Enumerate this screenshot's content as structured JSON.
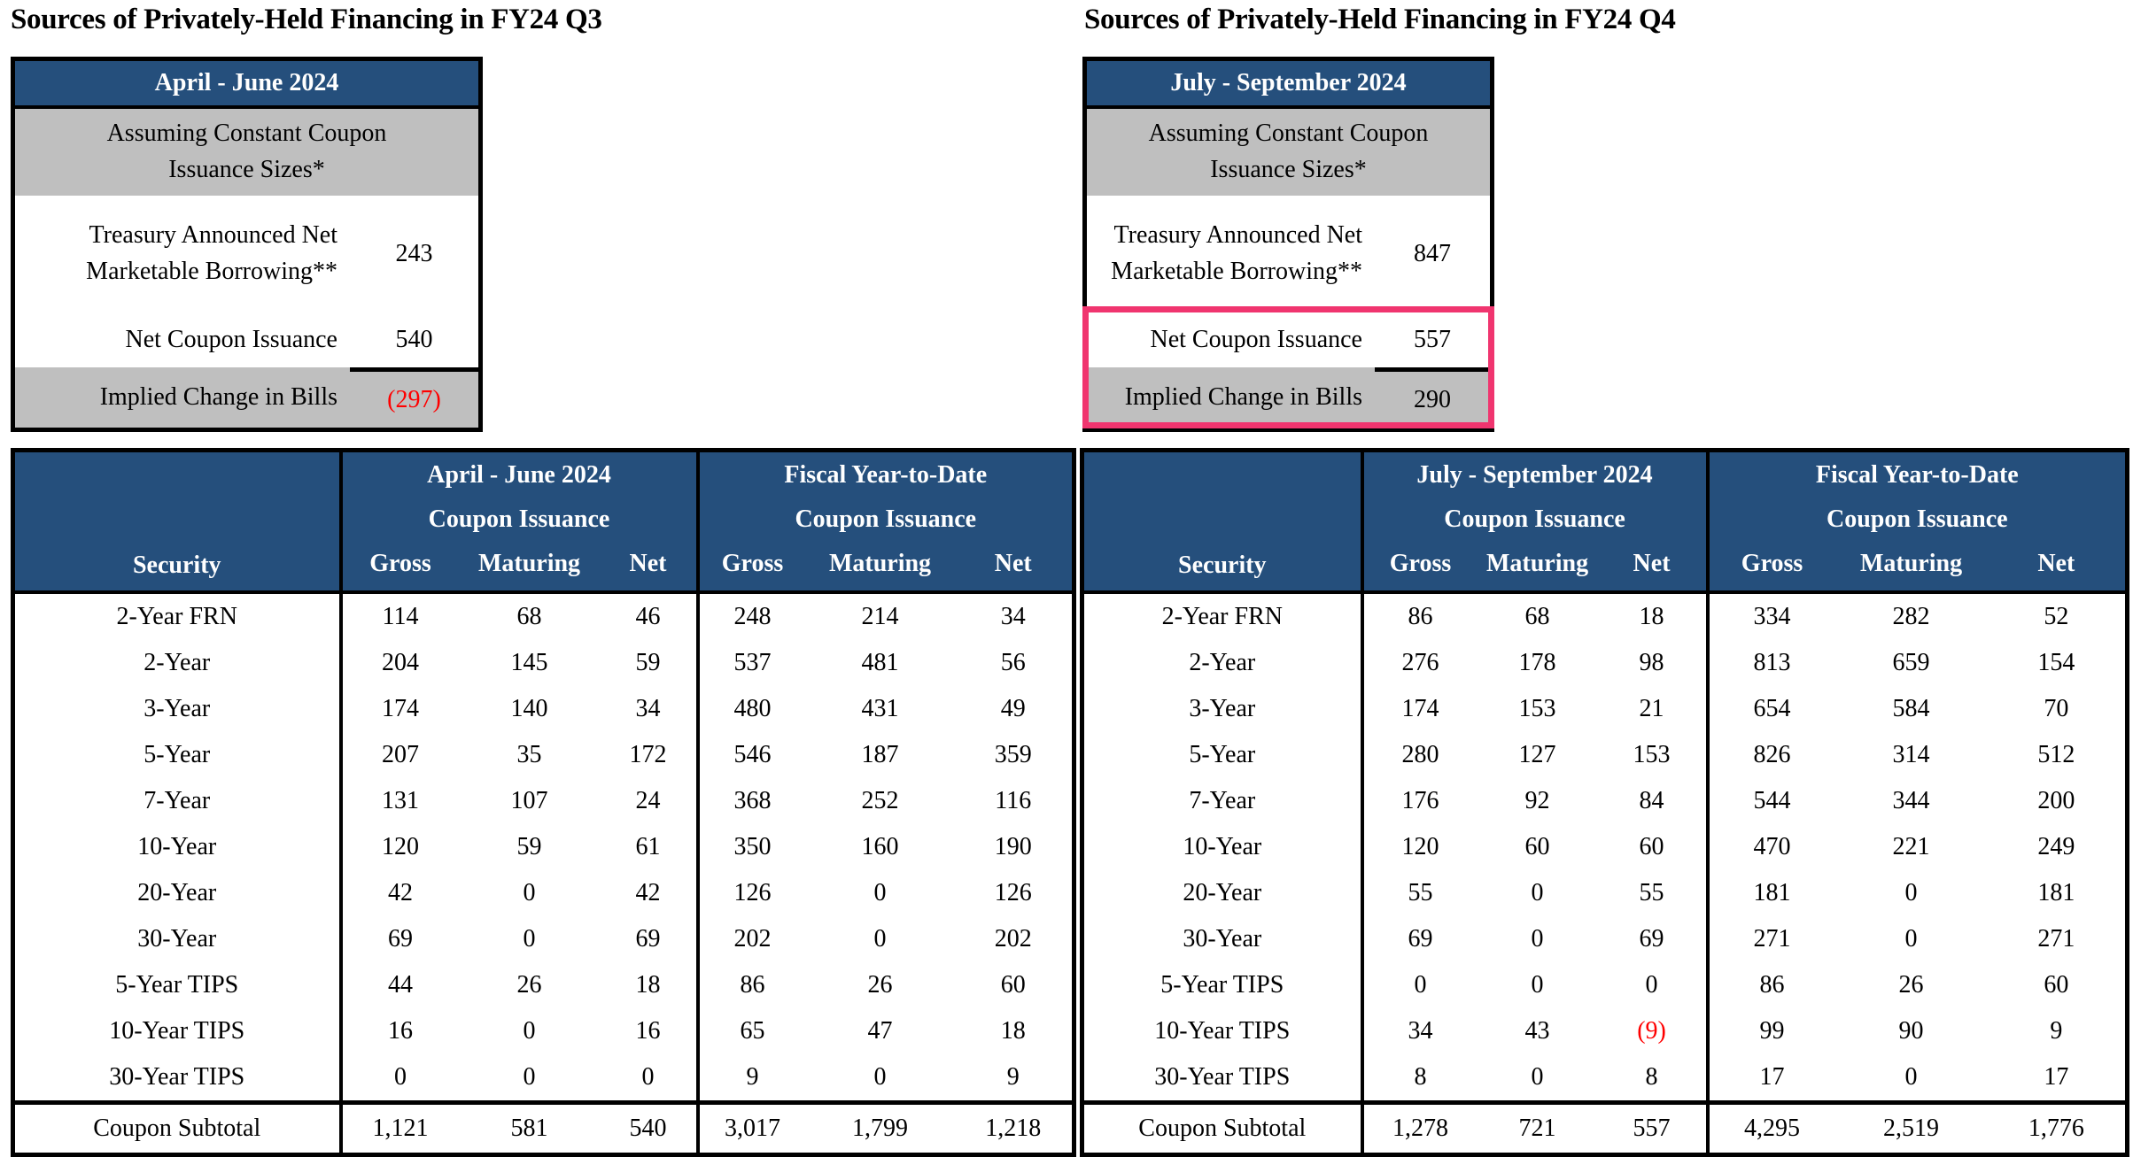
{
  "colors": {
    "header_blue": "#254F7C",
    "row_gray": "#BFBFBF",
    "highlight_pink": "#F0356F",
    "negative_red": "#FF0000"
  },
  "panels": [
    {
      "title": "Sources of Privately-Held Financing in FY24 Q3",
      "summary": {
        "period": "April - June 2024",
        "assumption": "Assuming Constant Coupon Issuance Sizes*",
        "rows": [
          {
            "label": "Treasury Announced Net Marketable Borrowing**",
            "value": "243"
          },
          {
            "label": "Net Coupon Issuance",
            "value": "540"
          },
          {
            "label": "Implied Change in Bills",
            "value": "(297)"
          }
        ],
        "highlighted": false
      },
      "table": {
        "security_header": "Security",
        "sections": [
          {
            "period": "April - June 2024",
            "sub": "Coupon Issuance",
            "cols": [
              "Gross",
              "Maturing",
              "Net"
            ]
          },
          {
            "period": "Fiscal Year-to-Date",
            "sub": "Coupon Issuance",
            "cols": [
              "Gross",
              "Maturing",
              "Net"
            ]
          }
        ],
        "rows": [
          [
            "2-Year FRN",
            "114",
            "68",
            "46",
            "248",
            "214",
            "34"
          ],
          [
            "2-Year",
            "204",
            "145",
            "59",
            "537",
            "481",
            "56"
          ],
          [
            "3-Year",
            "174",
            "140",
            "34",
            "480",
            "431",
            "49"
          ],
          [
            "5-Year",
            "207",
            "35",
            "172",
            "546",
            "187",
            "359"
          ],
          [
            "7-Year",
            "131",
            "107",
            "24",
            "368",
            "252",
            "116"
          ],
          [
            "10-Year",
            "120",
            "59",
            "61",
            "350",
            "160",
            "190"
          ],
          [
            "20-Year",
            "42",
            "0",
            "42",
            "126",
            "0",
            "126"
          ],
          [
            "30-Year",
            "69",
            "0",
            "69",
            "202",
            "0",
            "202"
          ],
          [
            "5-Year TIPS",
            "44",
            "26",
            "18",
            "86",
            "26",
            "60"
          ],
          [
            "10-Year TIPS",
            "16",
            "0",
            "16",
            "65",
            "47",
            "18"
          ],
          [
            "30-Year TIPS",
            "0",
            "0",
            "0",
            "9",
            "0",
            "9"
          ]
        ],
        "subtotal": [
          "Coupon Subtotal",
          "1,121",
          "581",
          "540",
          "3,017",
          "1,799",
          "1,218"
        ]
      }
    },
    {
      "title": "Sources of Privately-Held Financing in FY24 Q4",
      "summary": {
        "period": "July - September 2024",
        "assumption": "Assuming Constant Coupon Issuance Sizes*",
        "rows": [
          {
            "label": "Treasury Announced Net Marketable Borrowing**",
            "value": "847"
          },
          {
            "label": "Net Coupon Issuance",
            "value": "557"
          },
          {
            "label": "Implied Change in Bills",
            "value": "290"
          }
        ],
        "highlighted": true
      },
      "table": {
        "security_header": "Security",
        "sections": [
          {
            "period": "July - September 2024",
            "sub": "Coupon Issuance",
            "cols": [
              "Gross",
              "Maturing",
              "Net"
            ]
          },
          {
            "period": "Fiscal Year-to-Date",
            "sub": "Coupon Issuance",
            "cols": [
              "Gross",
              "Maturing",
              "Net"
            ]
          }
        ],
        "rows": [
          [
            "2-Year FRN",
            "86",
            "68",
            "18",
            "334",
            "282",
            "52"
          ],
          [
            "2-Year",
            "276",
            "178",
            "98",
            "813",
            "659",
            "154"
          ],
          [
            "3-Year",
            "174",
            "153",
            "21",
            "654",
            "584",
            "70"
          ],
          [
            "5-Year",
            "280",
            "127",
            "153",
            "826",
            "314",
            "512"
          ],
          [
            "7-Year",
            "176",
            "92",
            "84",
            "544",
            "344",
            "200"
          ],
          [
            "10-Year",
            "120",
            "60",
            "60",
            "470",
            "221",
            "249"
          ],
          [
            "20-Year",
            "55",
            "0",
            "55",
            "181",
            "0",
            "181"
          ],
          [
            "30-Year",
            "69",
            "0",
            "69",
            "271",
            "0",
            "271"
          ],
          [
            "5-Year TIPS",
            "0",
            "0",
            "0",
            "86",
            "26",
            "60"
          ],
          [
            "10-Year TIPS",
            "34",
            "43",
            "(9)",
            "99",
            "90",
            "9"
          ],
          [
            "30-Year TIPS",
            "8",
            "0",
            "8",
            "17",
            "0",
            "17"
          ]
        ],
        "subtotal": [
          "Coupon Subtotal",
          "1,278",
          "721",
          "557",
          "4,295",
          "2,519",
          "1,776"
        ]
      }
    }
  ]
}
